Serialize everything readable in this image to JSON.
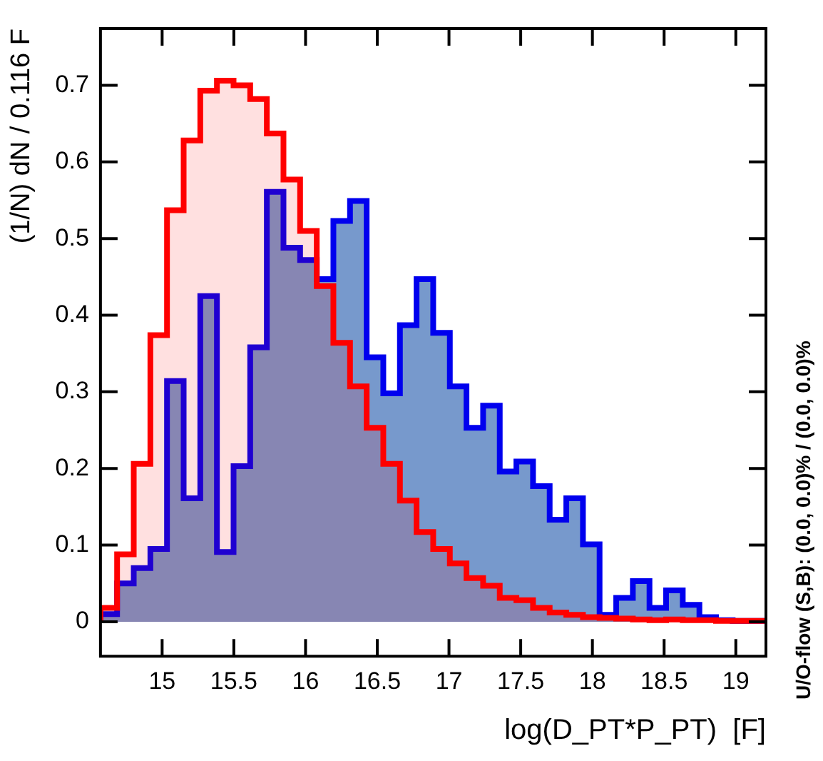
{
  "chart_data": {
    "type": "histogram",
    "xlabel": "log(D_PT*P_PT)  [F]",
    "ylabel": "(1/N) dN / 0.116 F",
    "annotations": [
      "U/O-flow (S,B): (0.0, 0.0)% / (0.0, 0.0)%"
    ],
    "bins": [
      14.57,
      14.686,
      14.802,
      14.918,
      15.034,
      15.15,
      15.266,
      15.382,
      15.498,
      15.614,
      15.73,
      15.846,
      15.962,
      16.078,
      16.194,
      16.31,
      16.426,
      16.542,
      16.658,
      16.774,
      16.89,
      17.006,
      17.122,
      17.238,
      17.354,
      17.47,
      17.586,
      17.702,
      17.818,
      17.934,
      18.05,
      18.166,
      18.282,
      18.398,
      18.514,
      18.63,
      18.746,
      18.862,
      18.978,
      19.094,
      19.21
    ],
    "series": [
      {
        "color": "#7799cc",
        "values": [
          0.01,
          0.05,
          0.07,
          0.095,
          0.314,
          0.161,
          0.425,
          0.091,
          0.203,
          0.358,
          0.561,
          0.488,
          0.472,
          0.447,
          0.523,
          0.549,
          0.345,
          0.298,
          0.387,
          0.447,
          0.377,
          0.307,
          0.253,
          0.282,
          0.196,
          0.209,
          0.177,
          0.133,
          0.161,
          0.101,
          0.009,
          0.031,
          0.053,
          0.018,
          0.041,
          0.022,
          0.006,
          0.002,
          0.001,
          0.001
        ]
      },
      {
        "color": "#ff0000",
        "values": [
          0.018,
          0.088,
          0.206,
          0.374,
          0.537,
          0.628,
          0.693,
          0.706,
          0.7,
          0.682,
          0.637,
          0.577,
          0.51,
          0.438,
          0.364,
          0.307,
          0.253,
          0.206,
          0.158,
          0.117,
          0.095,
          0.076,
          0.057,
          0.047,
          0.031,
          0.028,
          0.018,
          0.012,
          0.009,
          0.006,
          0.005,
          0.004,
          0.003,
          0.002,
          0.003,
          0.002,
          0.002,
          0.001,
          0.001,
          0.001
        ]
      }
    ],
    "xlim": [
      14.57,
      19.21
    ],
    "xticks": [
      15,
      15.5,
      16,
      16.5,
      17,
      17.5,
      18,
      18.5,
      19
    ],
    "ylim": [
      -0.045,
      0.774
    ],
    "yticks": [
      0,
      0.1,
      0.2,
      0.3,
      0.4,
      0.5,
      0.6,
      0.7
    ]
  }
}
